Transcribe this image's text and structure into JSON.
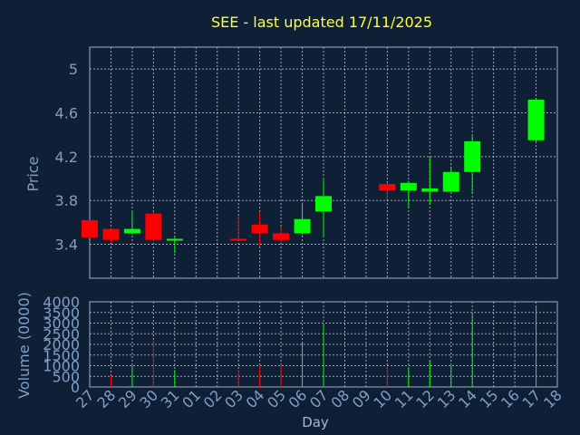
{
  "chart_data": {
    "type": "candlestick",
    "title": "SEE - last updated 17/11/2025",
    "ylabel": "Price",
    "volume_ylabel": "Volume (0000)",
    "xlabel": "Day",
    "price_ylim": [
      3.09,
      5.2
    ],
    "price_yticks": [
      3.4,
      3.8,
      4.2,
      4.6,
      5
    ],
    "volume_ylim": [
      0,
      4000
    ],
    "volume_yticks": [
      0,
      500,
      1000,
      1500,
      2000,
      2500,
      3000,
      3500,
      4000
    ],
    "x_ticks": [
      "27",
      "28",
      "29",
      "30",
      "31",
      "01",
      "02",
      "03",
      "04",
      "05",
      "06",
      "07",
      "08",
      "09",
      "10",
      "11",
      "12",
      "13",
      "14",
      "15",
      "16",
      "17",
      "18"
    ],
    "candles": [
      {
        "x": 27,
        "open": 3.62,
        "high": 3.62,
        "low": 3.46,
        "close": 3.46,
        "volume": 0
      },
      {
        "x": 28,
        "open": 3.54,
        "high": 3.54,
        "low": 3.42,
        "close": 3.44,
        "volume": 550
      },
      {
        "x": 29,
        "open": 3.5,
        "high": 3.7,
        "low": 3.49,
        "close": 3.54,
        "volume": 1000
      },
      {
        "x": 30,
        "open": 3.68,
        "high": 3.7,
        "low": 3.43,
        "close": 3.44,
        "volume": 2200
      },
      {
        "x": 31,
        "open": 3.44,
        "high": 3.46,
        "low": 3.32,
        "close": 3.45,
        "volume": 800
      },
      {
        "x": 3,
        "open": 3.45,
        "high": 3.66,
        "low": 3.44,
        "close": 3.44,
        "volume": 800
      },
      {
        "x": 4,
        "open": 3.58,
        "high": 3.69,
        "low": 3.38,
        "close": 3.5,
        "volume": 1000
      },
      {
        "x": 5,
        "open": 3.5,
        "high": 3.56,
        "low": 3.42,
        "close": 3.44,
        "volume": 1000
      },
      {
        "x": 6,
        "open": 3.5,
        "high": 3.78,
        "low": 3.49,
        "close": 3.63,
        "volume": 2050
      },
      {
        "x": 7,
        "open": 3.7,
        "high": 3.99,
        "low": 3.47,
        "close": 3.84,
        "volume": 2900
      },
      {
        "x": 10,
        "open": 3.95,
        "high": 3.96,
        "low": 3.81,
        "close": 3.89,
        "volume": 950
      },
      {
        "x": 11,
        "open": 3.89,
        "high": 3.98,
        "low": 3.74,
        "close": 3.96,
        "volume": 900
      },
      {
        "x": 12,
        "open": 3.88,
        "high": 4.2,
        "low": 3.76,
        "close": 3.91,
        "volume": 1250
      },
      {
        "x": 13,
        "open": 3.88,
        "high": 4.11,
        "low": 3.88,
        "close": 4.06,
        "volume": 1000
      },
      {
        "x": 14,
        "open": 4.06,
        "high": 4.39,
        "low": 3.86,
        "close": 4.34,
        "volume": 3400
      },
      {
        "x": 17,
        "open": 4.35,
        "high": 4.73,
        "low": 4.34,
        "close": 4.72,
        "volume": 3800
      }
    ],
    "grid": true,
    "colors": {
      "up": "#00ff00",
      "down": "#ff0000",
      "background": "#0f1f35",
      "title": "#ffff33",
      "tick_labels": "#7f9fc5",
      "grid": "#c8d4e4"
    }
  }
}
